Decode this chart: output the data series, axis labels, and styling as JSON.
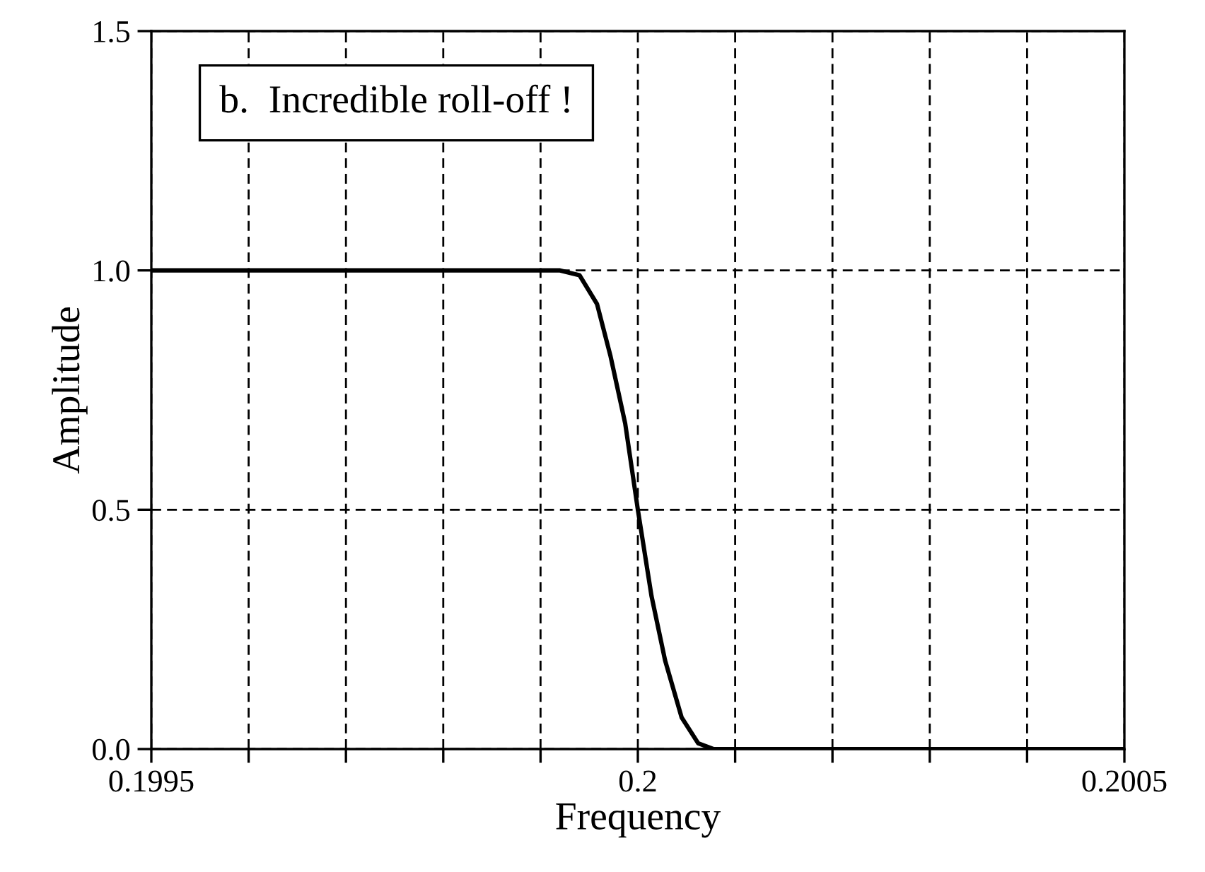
{
  "chart_data": {
    "type": "line",
    "xlabel": "Frequency",
    "ylabel": "Amplitude",
    "annotations": [
      "b.  Incredible roll-off !"
    ],
    "x": [
      0.1995,
      0.19992,
      0.19994,
      0.199958,
      0.199972,
      0.199987,
      0.2,
      0.200014,
      0.200028,
      0.200045,
      0.200062,
      0.200078,
      0.2005
    ],
    "series": [
      {
        "color": "#000000",
        "values": [
          1,
          1,
          0.99,
          0.93,
          0.82,
          0.68,
          0.5,
          0.32,
          0.185,
          0.066,
          0.012,
          0,
          0
        ]
      }
    ],
    "xlim": [
      0.1995,
      0.2005
    ],
    "xticks": [
      {
        "value": 0.1995,
        "label": "0.1995"
      },
      {
        "value": 0.1996,
        "label": null
      },
      {
        "value": 0.1997,
        "label": null
      },
      {
        "value": 0.1998,
        "label": null
      },
      {
        "value": 0.1999,
        "label": null
      },
      {
        "value": 0.2,
        "label": "0.2"
      },
      {
        "value": 0.2001,
        "label": null
      },
      {
        "value": 0.2002,
        "label": null
      },
      {
        "value": 0.2003,
        "label": null
      },
      {
        "value": 0.2004,
        "label": null
      },
      {
        "value": 0.2005,
        "label": "0.2005"
      }
    ],
    "ylim": [
      0,
      1.5
    ],
    "yticks": [
      {
        "value": 0,
        "label": "0.0"
      },
      {
        "value": 0.5,
        "label": "0.5"
      },
      {
        "value": 1,
        "label": "1.0"
      },
      {
        "value": 1.5,
        "label": "1.5"
      }
    ],
    "grid": true,
    "marker": "none",
    "line_style": "solid",
    "legend": false
  }
}
